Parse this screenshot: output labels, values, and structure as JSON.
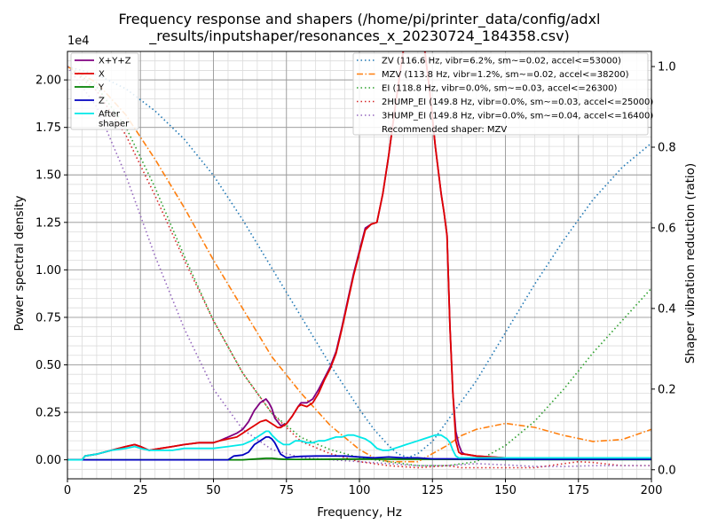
{
  "chart_data": {
    "type": "line",
    "title_lines": [
      "Frequency response and shapers (/home/pi/printer_data/config/adxl",
      "_results/inputshaper/resonances_x_20230724_184358.csv)"
    ],
    "xlabel": "Frequency, Hz",
    "ylabel": "Power spectral density",
    "y2label": "Shaper vibration reduction (ratio)",
    "y_exponent_label": "1e4",
    "xlim": [
      0,
      200
    ],
    "ylim": [
      -0.1,
      2.15
    ],
    "y2lim": [
      -0.0225,
      1.0375
    ],
    "x_ticks": [
      0,
      25,
      50,
      75,
      100,
      125,
      150,
      175,
      200
    ],
    "x_tick_labels": [
      "0",
      "25",
      "50",
      "75",
      "100",
      "125",
      "150",
      "175",
      "200"
    ],
    "y_ticks": [
      0,
      0.25,
      0.5,
      0.75,
      1.0,
      1.25,
      1.5,
      1.75,
      2.0
    ],
    "y_tick_labels": [
      "0.00",
      "0.25",
      "0.50",
      "0.75",
      "1.00",
      "1.25",
      "1.50",
      "1.75",
      "2.00"
    ],
    "y2_ticks": [
      0,
      0.2,
      0.4,
      0.6,
      0.8,
      1.0
    ],
    "y2_tick_labels": [
      "0.0",
      "0.2",
      "0.4",
      "0.6",
      "0.8",
      "1.0"
    ],
    "grid": "major and minor",
    "legend_left_placement": "top-left",
    "legend_right_placement": "top-right",
    "recommended_text": "Recommended shaper: MZV",
    "psd_series": [
      {
        "name": "X+Y+Z",
        "color": "#800080",
        "width": 1.8,
        "x": [
          0,
          5,
          6,
          10,
          15,
          20,
          23,
          25,
          28,
          32,
          36,
          40,
          45,
          50,
          52,
          55,
          58,
          60,
          62,
          64,
          66,
          68,
          69,
          70,
          71,
          72,
          73,
          75,
          77,
          79,
          80,
          82,
          84,
          86,
          88,
          90,
          92,
          94,
          96,
          98,
          100,
          102,
          104,
          106,
          108,
          110,
          112,
          114,
          116,
          118,
          120,
          122,
          124,
          126,
          128,
          129,
          130,
          131,
          132,
          133,
          134,
          135,
          136,
          140,
          150,
          160,
          170,
          180,
          190,
          200
        ],
        "y": [
          0.0,
          0.0,
          0.02,
          0.03,
          0.05,
          0.07,
          0.08,
          0.07,
          0.05,
          0.06,
          0.07,
          0.08,
          0.09,
          0.09,
          0.1,
          0.12,
          0.14,
          0.16,
          0.2,
          0.26,
          0.3,
          0.32,
          0.3,
          0.27,
          0.22,
          0.2,
          0.18,
          0.19,
          0.23,
          0.28,
          0.3,
          0.3,
          0.32,
          0.37,
          0.43,
          0.49,
          0.57,
          0.7,
          0.84,
          0.98,
          1.1,
          1.22,
          1.24,
          1.25,
          1.4,
          1.6,
          1.83,
          2.05,
          2.25,
          2.4,
          2.35,
          2.2,
          1.95,
          1.65,
          1.4,
          1.3,
          1.18,
          0.7,
          0.35,
          0.15,
          0.08,
          0.04,
          0.03,
          0.02,
          0.01,
          0.01,
          0.01,
          0.01,
          0.01,
          0.01
        ]
      },
      {
        "name": "X",
        "color": "#e00000",
        "width": 1.8,
        "x": [
          0,
          5,
          6,
          10,
          15,
          20,
          23,
          25,
          28,
          32,
          36,
          40,
          45,
          50,
          52,
          55,
          58,
          60,
          62,
          64,
          66,
          68,
          69,
          70,
          71,
          72,
          73,
          75,
          77,
          79,
          80,
          82,
          84,
          86,
          88,
          90,
          92,
          94,
          96,
          98,
          100,
          102,
          104,
          106,
          108,
          110,
          112,
          114,
          116,
          118,
          120,
          122,
          124,
          126,
          128,
          129,
          130,
          131,
          132,
          133,
          134,
          135,
          136,
          140,
          150,
          160,
          170,
          180,
          190,
          200
        ],
        "y": [
          0.0,
          0.0,
          0.02,
          0.03,
          0.05,
          0.07,
          0.08,
          0.07,
          0.05,
          0.06,
          0.07,
          0.08,
          0.09,
          0.09,
          0.1,
          0.11,
          0.12,
          0.14,
          0.16,
          0.18,
          0.2,
          0.21,
          0.2,
          0.19,
          0.18,
          0.17,
          0.17,
          0.19,
          0.23,
          0.28,
          0.29,
          0.28,
          0.3,
          0.35,
          0.42,
          0.48,
          0.56,
          0.69,
          0.83,
          0.97,
          1.09,
          1.21,
          1.24,
          1.25,
          1.4,
          1.6,
          1.83,
          2.05,
          2.25,
          2.4,
          2.35,
          2.2,
          1.95,
          1.65,
          1.4,
          1.3,
          1.18,
          0.7,
          0.35,
          0.1,
          0.04,
          0.03,
          0.03,
          0.02,
          0.01,
          0.01,
          0.01,
          0.01,
          0.01,
          0.01
        ]
      },
      {
        "name": "Y",
        "color": "#008000",
        "width": 1.8,
        "x": [
          0,
          55,
          60,
          65,
          68,
          70,
          72,
          75,
          80,
          90,
          100,
          110,
          120,
          130,
          140,
          150,
          160,
          170,
          180,
          190,
          200
        ],
        "y": [
          0.0,
          0.0,
          0.0,
          0.005,
          0.008,
          0.008,
          0.005,
          0.002,
          0.002,
          0.003,
          0.004,
          0.004,
          0.003,
          0.002,
          0.002,
          0.001,
          0.001,
          0.001,
          0.001,
          0.001,
          0.001
        ]
      },
      {
        "name": "Z",
        "color": "#0000c0",
        "width": 1.8,
        "x": [
          0,
          50,
          55,
          57,
          60,
          62,
          64,
          66,
          68,
          69,
          70,
          71,
          72,
          73,
          74,
          75,
          77,
          80,
          85,
          90,
          95,
          100,
          105,
          110,
          115,
          120,
          125,
          130,
          140,
          150,
          160,
          170,
          180,
          190,
          200
        ],
        "y": [
          0.0,
          0.0,
          0.0,
          0.02,
          0.025,
          0.04,
          0.08,
          0.1,
          0.12,
          0.12,
          0.11,
          0.09,
          0.06,
          0.03,
          0.02,
          0.01,
          0.015,
          0.018,
          0.02,
          0.02,
          0.02,
          0.015,
          0.01,
          0.015,
          0.01,
          0.01,
          0.005,
          0.005,
          0.003,
          0.003,
          0.002,
          0.002,
          0.002,
          0.002,
          0.002
        ]
      },
      {
        "name": "After\nshaper",
        "color": "#00e8e8",
        "width": 1.8,
        "x": [
          0,
          5,
          6,
          10,
          15,
          20,
          23,
          25,
          28,
          32,
          36,
          40,
          45,
          50,
          55,
          60,
          63,
          65,
          67,
          68,
          69,
          70,
          72,
          74,
          76,
          78,
          80,
          82,
          84,
          86,
          88,
          90,
          92,
          94,
          96,
          98,
          100,
          102,
          104,
          106,
          108,
          110,
          112,
          114,
          116,
          118,
          120,
          122,
          124,
          126,
          128,
          130,
          131,
          132,
          133,
          134,
          135,
          136,
          140,
          145,
          150,
          160,
          170,
          180,
          190,
          200
        ],
        "y": [
          0.0,
          0.0,
          0.02,
          0.03,
          0.05,
          0.06,
          0.07,
          0.06,
          0.05,
          0.05,
          0.05,
          0.06,
          0.06,
          0.06,
          0.07,
          0.08,
          0.1,
          0.12,
          0.14,
          0.15,
          0.15,
          0.13,
          0.1,
          0.08,
          0.08,
          0.1,
          0.1,
          0.09,
          0.09,
          0.1,
          0.1,
          0.11,
          0.12,
          0.12,
          0.13,
          0.13,
          0.12,
          0.11,
          0.09,
          0.06,
          0.05,
          0.05,
          0.06,
          0.07,
          0.08,
          0.09,
          0.1,
          0.11,
          0.12,
          0.13,
          0.13,
          0.11,
          0.09,
          0.05,
          0.02,
          0.01,
          0.01,
          0.01,
          0.01,
          0.01,
          0.01,
          0.01,
          0.01,
          0.01,
          0.01,
          0.01
        ]
      }
    ],
    "shaper_series": [
      {
        "name": "ZV (116.6 Hz, vibr=6.2%, sm~=0.02, accel<=53000)",
        "color": "#1f77b4",
        "dash": "1.5,3",
        "x": [
          0,
          10,
          20,
          30,
          40,
          50,
          60,
          70,
          80,
          90,
          100,
          105,
          110,
          113,
          116.6,
          120,
          125,
          130,
          140,
          150,
          160,
          170,
          180,
          190,
          200
        ],
        "ratio": [
          1.0,
          0.98,
          0.945,
          0.89,
          0.82,
          0.73,
          0.62,
          0.5,
          0.38,
          0.26,
          0.15,
          0.1,
          0.06,
          0.04,
          0.03,
          0.04,
          0.07,
          0.12,
          0.22,
          0.34,
          0.46,
          0.57,
          0.67,
          0.75,
          0.81
        ]
      },
      {
        "name": "MZV (113.8 Hz, vibr=1.2%, sm~=0.02, accel<=38200)",
        "color": "#ff7f0e",
        "dash": "7,2.5,1.5,2.5",
        "x": [
          0,
          10,
          20,
          30,
          40,
          50,
          60,
          70,
          80,
          90,
          100,
          105,
          110,
          115,
          120,
          125,
          130,
          135,
          140,
          150,
          160,
          170,
          180,
          190,
          200
        ],
        "ratio": [
          1.0,
          0.96,
          0.88,
          0.77,
          0.65,
          0.52,
          0.4,
          0.28,
          0.19,
          0.11,
          0.05,
          0.03,
          0.02,
          0.02,
          0.02,
          0.04,
          0.06,
          0.085,
          0.1,
          0.115,
          0.105,
          0.085,
          0.07,
          0.075,
          0.1
        ]
      },
      {
        "name": "EI (118.8 Hz, vibr=0.0%, sm~=0.03, accel<=26300)",
        "color": "#2ca02c",
        "dash": "1.5,3",
        "x": [
          0,
          10,
          20,
          30,
          40,
          50,
          60,
          70,
          80,
          90,
          100,
          110,
          120,
          130,
          140,
          150,
          160,
          170,
          180,
          190,
          200
        ],
        "ratio": [
          1.0,
          0.95,
          0.85,
          0.7,
          0.53,
          0.37,
          0.24,
          0.14,
          0.08,
          0.05,
          0.03,
          0.02,
          0.01,
          0.01,
          0.02,
          0.06,
          0.12,
          0.2,
          0.29,
          0.37,
          0.45
        ]
      },
      {
        "name": "2HUMP_EI (149.8 Hz, vibr=0.0%, sm~=0.03, accel<=25000)",
        "color": "#d62728",
        "dash": "1.5,3",
        "x": [
          0,
          10,
          20,
          30,
          40,
          50,
          60,
          70,
          80,
          90,
          100,
          110,
          120,
          130,
          135,
          140,
          150,
          160,
          170,
          175,
          180,
          190,
          200
        ],
        "ratio": [
          1.0,
          0.94,
          0.83,
          0.68,
          0.52,
          0.37,
          0.24,
          0.14,
          0.07,
          0.04,
          0.02,
          0.01,
          0.005,
          0.01,
          0.005,
          0.005,
          0.005,
          0.005,
          0.015,
          0.02,
          0.018,
          0.01,
          0.01
        ]
      },
      {
        "name": "3HUMP_EI (149.8 Hz, vibr=0.0%, sm~=0.04, accel<=16400)",
        "color": "#9467bd",
        "dash": "1.5,3",
        "x": [
          0,
          10,
          20,
          30,
          40,
          50,
          60,
          70,
          80,
          90,
          100,
          110,
          120,
          130,
          140,
          150,
          160,
          170,
          180,
          190,
          200
        ],
        "ratio": [
          1.0,
          0.9,
          0.73,
          0.53,
          0.35,
          0.2,
          0.1,
          0.05,
          0.03,
          0.025,
          0.02,
          0.015,
          0.01,
          0.01,
          0.015,
          0.012,
          0.008,
          0.008,
          0.01,
          0.01,
          0.01
        ]
      }
    ]
  }
}
